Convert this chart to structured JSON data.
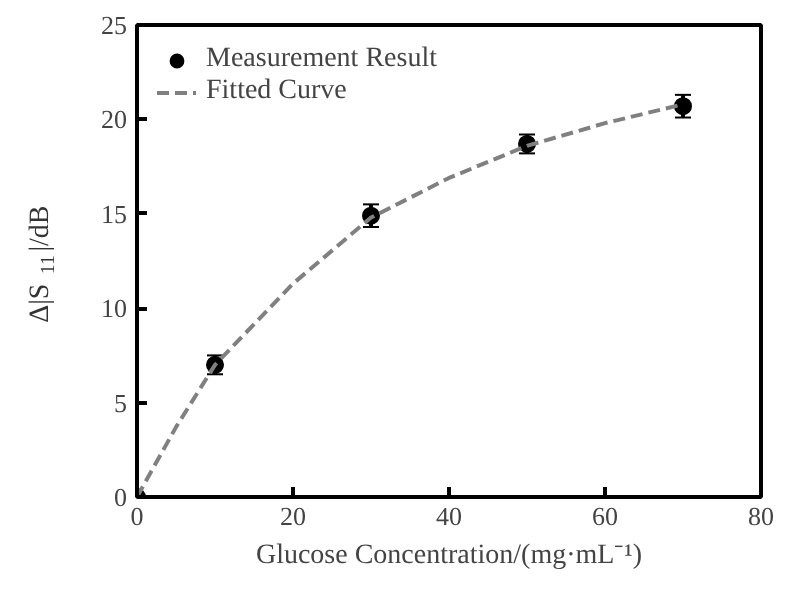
{
  "chart_data": {
    "type": "scatter",
    "xlabel": "Glucose Concentration/(mg·mL⁻¹)",
    "ylabel": "Δ|S$_{11}$|/dB",
    "xlim": [
      0,
      80
    ],
    "xticks": [
      0,
      20,
      40,
      60,
      80
    ],
    "ylim": [
      0,
      25
    ],
    "yticks": [
      0,
      5,
      10,
      15,
      20,
      25
    ],
    "grid": false,
    "legend": "top left",
    "series": [
      {
        "name": "Measurement Result",
        "marker": "circle",
        "color": "#000000",
        "x": [
          0,
          10,
          30,
          50,
          70
        ],
        "values": [
          0,
          7,
          14.9,
          18.7,
          20.7
        ],
        "errors": [
          null,
          0.5,
          0.6,
          0.5,
          0.6
        ]
      },
      {
        "name": "Fitted Curve",
        "type": "line",
        "line_style": "dashed",
        "color": "#808080",
        "x": [
          0,
          5,
          10,
          20,
          30,
          40,
          50,
          60,
          70
        ],
        "values": [
          0,
          3.7,
          7,
          11.3,
          14.8,
          16.9,
          18.6,
          19.8,
          20.8
        ]
      }
    ]
  }
}
